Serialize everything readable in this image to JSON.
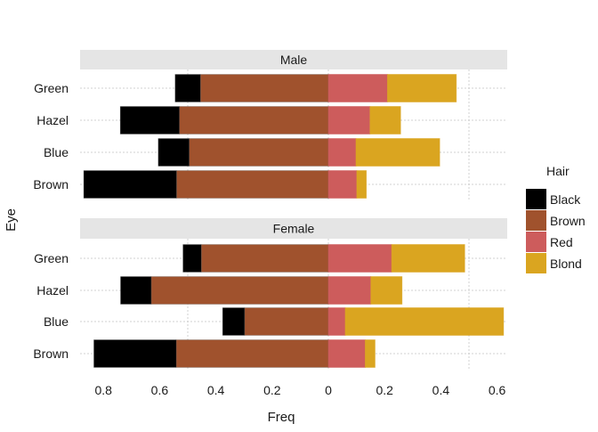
{
  "chart_data": {
    "type": "bar",
    "orientation": "horizontal",
    "layout": "diverging-stacked",
    "title": "",
    "xlabel": "Freq",
    "ylabel": "Eye",
    "xlim": [
      -0.85,
      0.65
    ],
    "x_ticks": [
      -0.8,
      -0.6,
      -0.4,
      -0.2,
      0,
      0.2,
      0.4,
      0.6
    ],
    "x_tick_labels": [
      "0.8",
      "0.6",
      "0.4",
      "0.2",
      "0",
      "0.2",
      "0.4",
      "0.6"
    ],
    "grid": true,
    "categories": [
      "Green",
      "Hazel",
      "Blue",
      "Brown"
    ],
    "legend": {
      "title": "Hair",
      "position": "right",
      "entries": [
        {
          "name": "Black",
          "color": "#000000",
          "side": "left"
        },
        {
          "name": "Brown",
          "color": "#A0522D",
          "side": "left"
        },
        {
          "name": "Red",
          "color": "#CD5C5C",
          "side": "right"
        },
        {
          "name": "Blond",
          "color": "#DAA520",
          "side": "right"
        }
      ]
    },
    "panels": [
      {
        "label": "Male",
        "series": [
          {
            "name": "Black",
            "values": [
              0.09,
              0.21,
              0.11,
              0.33
            ]
          },
          {
            "name": "Brown",
            "values": [
              0.455,
              0.53,
              0.495,
              0.54
            ]
          },
          {
            "name": "Red",
            "values": [
              0.21,
              0.148,
              0.098,
              0.101
            ]
          },
          {
            "name": "Blond",
            "values": [
              0.245,
              0.109,
              0.298,
              0.034
            ]
          }
        ]
      },
      {
        "label": "Female",
        "series": [
          {
            "name": "Black",
            "values": [
              0.065,
              0.109,
              0.078,
              0.293
            ]
          },
          {
            "name": "Brown",
            "values": [
              0.452,
              0.63,
              0.298,
              0.541
            ]
          },
          {
            "name": "Red",
            "values": [
              0.225,
              0.151,
              0.06,
              0.131
            ]
          },
          {
            "name": "Blond",
            "values": [
              0.26,
              0.111,
              0.563,
              0.035
            ]
          }
        ]
      }
    ]
  }
}
